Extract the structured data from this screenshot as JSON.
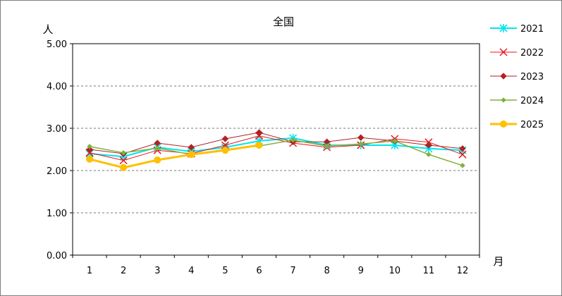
{
  "chart_data": {
    "type": "line",
    "title": "全国",
    "ylabel": "人",
    "xlabel": "月",
    "categories": [
      "1",
      "2",
      "3",
      "4",
      "5",
      "6",
      "7",
      "8",
      "9",
      "10",
      "11",
      "12"
    ],
    "ylim": [
      0,
      5
    ],
    "yticks": [
      "0.00",
      "1.00",
      "2.00",
      "3.00",
      "4.00",
      "5.00"
    ],
    "ytick_values": [
      0,
      1,
      2,
      3,
      4,
      5
    ],
    "grid": "horizontal-dashed",
    "legend_position": "right",
    "series": [
      {
        "name": "2021",
        "color": "#00e5ee",
        "marker": "asterisk",
        "width": 2,
        "values": [
          2.4,
          2.33,
          2.55,
          2.45,
          2.55,
          2.7,
          2.77,
          2.6,
          2.6,
          2.6,
          2.52,
          2.48
        ]
      },
      {
        "name": "2022",
        "color": "#e31a1c",
        "marker": "x",
        "width": 1,
        "values": [
          2.42,
          2.24,
          2.48,
          2.4,
          2.6,
          2.82,
          2.65,
          2.55,
          2.6,
          2.75,
          2.67,
          2.38
        ]
      },
      {
        "name": "2023",
        "color": "#b22222",
        "marker": "diamond",
        "width": 1,
        "values": [
          2.5,
          2.4,
          2.65,
          2.55,
          2.75,
          2.9,
          2.68,
          2.68,
          2.78,
          2.7,
          2.6,
          2.52
        ]
      },
      {
        "name": "2024",
        "color": "#7fb13a",
        "marker": "diamond-small",
        "width": 1.5,
        "values": [
          2.57,
          2.42,
          2.53,
          2.38,
          2.5,
          2.58,
          2.72,
          2.58,
          2.63,
          2.7,
          2.38,
          2.12
        ]
      },
      {
        "name": "2025",
        "color": "#ffc000",
        "marker": "circle",
        "width": 3,
        "values": [
          2.27,
          2.07,
          2.25,
          2.38,
          2.48,
          2.6,
          null,
          null,
          null,
          null,
          null,
          null
        ]
      }
    ]
  }
}
